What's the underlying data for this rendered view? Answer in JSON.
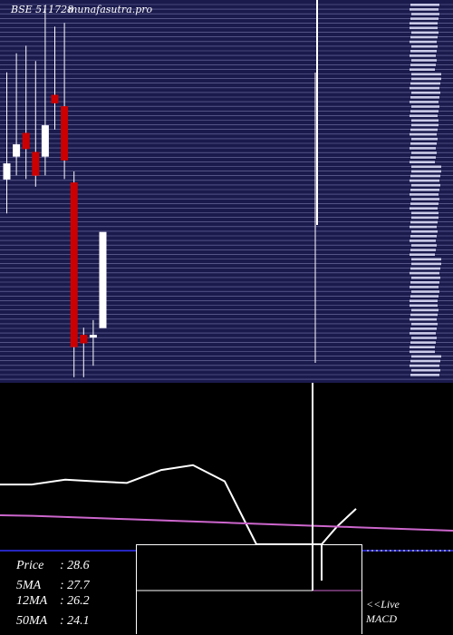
{
  "header": {
    "symbol": "BSE 511728",
    "source": "munafasutra.pro"
  },
  "info": {
    "price_label": "Price",
    "price_value": "28.6",
    "ma5_label": "5MA",
    "ma5_value": "27.7",
    "ma12_label": "12MA",
    "ma12_value": "26.2",
    "ma50_label": "50MA",
    "ma50_value": "24.1"
  },
  "live_macd": {
    "line1": "<<Live",
    "line2": "MACD"
  },
  "colors": {
    "price_bg": "#1a1a4d",
    "grid": "#7777aa",
    "up": "#ffffff",
    "down": "#cc0000",
    "wick": "#ffffff",
    "ma_line": "#ffffff",
    "ma_purple": "#cc66cc",
    "macd_blue": "#3333ff"
  },
  "chart_data": {
    "type": "candlestick",
    "ylim": [
      0,
      100
    ],
    "candles": [
      {
        "open": 53,
        "high": 81,
        "low": 44,
        "close": 57
      },
      {
        "open": 59,
        "high": 86,
        "low": 54,
        "close": 62
      },
      {
        "open": 65,
        "high": 88,
        "low": 53,
        "close": 61
      },
      {
        "open": 60,
        "high": 84,
        "low": 51,
        "close": 54
      },
      {
        "open": 59,
        "high": 98,
        "low": 54,
        "close": 67
      },
      {
        "open": 75,
        "high": 93,
        "low": 66,
        "close": 73
      },
      {
        "open": 72,
        "high": 94,
        "low": 53,
        "close": 58
      },
      {
        "open": 52,
        "high": 55,
        "low": 1,
        "close": 9
      },
      {
        "open": 12,
        "high": 14,
        "low": 1,
        "close": 10
      },
      {
        "open": 12,
        "high": 16,
        "low": 4,
        "close": 12
      },
      {
        "open": 14,
        "high": 39,
        "low": 14,
        "close": 39
      }
    ],
    "ma_line": [
      37,
      37,
      40,
      39,
      38,
      46,
      49,
      39,
      0,
      0,
      0,
      0,
      11,
      22
    ],
    "ma_purple": [
      33,
      32,
      30,
      28,
      26,
      24,
      22,
      20,
      18,
      16,
      14,
      12,
      10,
      8,
      6
    ]
  }
}
